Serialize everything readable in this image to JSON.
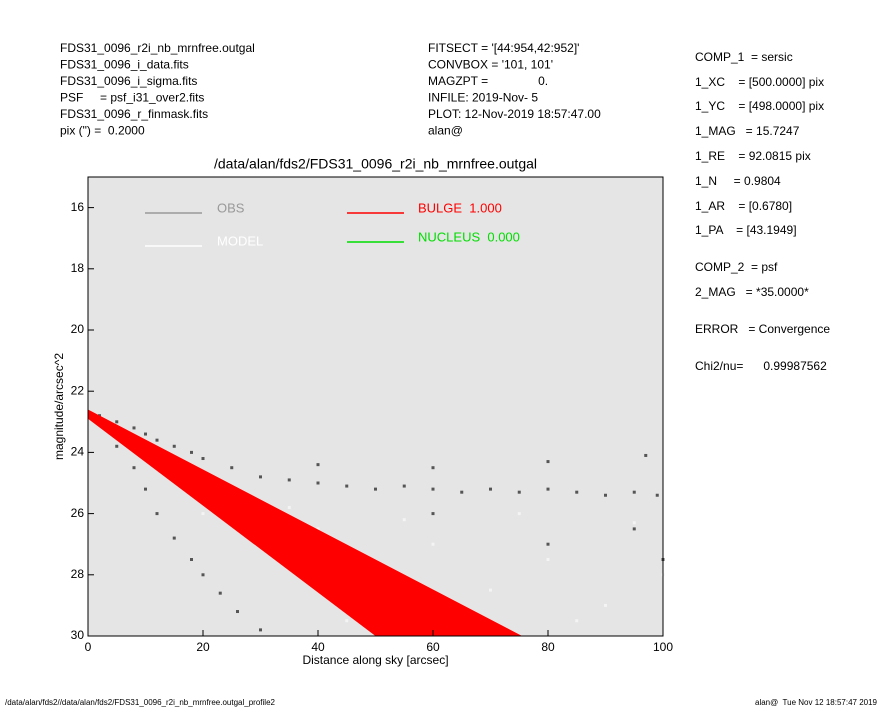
{
  "header": {
    "left": [
      "FDS31_0096_r2i_nb_mrnfree.outgal",
      "FDS31_0096_i_data.fits",
      "FDS31_0096_i_sigma.fits",
      "PSF     = psf_i31_over2.fits",
      "FDS31_0096_r_finmask.fits",
      "pix (\") =  0.2000"
    ],
    "middle": [
      "FITSECT = '[44:954,42:952]'",
      "CONVBOX = '101, 101'",
      "MAGZPT =               0.",
      "INFILE: 2019-Nov- 5",
      "PLOT: 12-Nov-2019 18:57:47.00",
      "alan@"
    ]
  },
  "side_panel": [
    "COMP_1  = sersic",
    "1_XC    = [500.0000] pix",
    "1_YC    = [498.0000] pix",
    "1_MAG   = 15.7247",
    "1_RE    = 92.0815 pix",
    "1_N     = 0.9804",
    "1_AR    = [0.6780]",
    "1_PA    = [43.1949]",
    "COMP_2  = psf",
    "2_MAG   = *35.0000*",
    "ERROR   = Convergence",
    "Chi2/nu=      0.99987562"
  ],
  "footer": {
    "left": "/data/alan/fds2//data/alan/fds2/FDS31_0096_r2i_nb_mrnfree.outgal_profile2",
    "right": "alan@  Tue Nov 12 18:57:47 2019"
  },
  "chart_data": {
    "type": "scatter",
    "title": "/data/alan/fds2/FDS31_0096_r2i_nb_mrnfree.outgal",
    "x_label": "Distance along sky [arcsec]",
    "y_label": "magnitude/arcsec^2",
    "xlim": [
      0,
      100
    ],
    "ylim": [
      30,
      15
    ],
    "xticks": [
      0,
      20,
      40,
      60,
      80,
      100
    ],
    "yticks": [
      16,
      18,
      20,
      22,
      24,
      26,
      28,
      30
    ],
    "background": "#e5e5e5",
    "series": [
      {
        "name": "OBS",
        "color": "#555555",
        "legend_color": "#999999",
        "x": [
          2,
          5,
          8,
          10,
          12,
          15,
          18,
          20,
          25,
          30,
          35,
          40,
          45,
          50,
          55,
          60,
          65,
          70,
          75,
          80,
          85,
          90,
          95,
          99,
          40,
          60,
          80,
          97,
          5,
          8,
          10,
          12,
          15,
          18,
          20,
          23,
          26,
          30,
          60,
          80,
          95,
          100
        ],
        "y": [
          22.8,
          23.0,
          23.2,
          23.4,
          23.6,
          23.8,
          24.0,
          24.2,
          24.5,
          24.8,
          24.9,
          25.0,
          25.1,
          25.2,
          25.1,
          25.2,
          25.3,
          25.2,
          25.3,
          25.2,
          25.3,
          25.4,
          25.3,
          25.4,
          24.4,
          24.5,
          24.3,
          24.1,
          23.8,
          24.5,
          25.2,
          26,
          26.8,
          27.5,
          28,
          28.6,
          29.2,
          29.8,
          26,
          27,
          26.5,
          27.5
        ]
      },
      {
        "name": "MODEL",
        "color": "#f4f4f4",
        "legend_color": "#ffffff",
        "x": [
          20,
          40,
          60,
          80,
          100,
          30,
          50,
          70,
          90,
          45,
          65,
          85,
          35,
          55,
          75,
          95
        ],
        "y": [
          26,
          26.5,
          27,
          27.5,
          28,
          27,
          28,
          28.5,
          29,
          29.5,
          29.8,
          29.5,
          25.8,
          26.2,
          26,
          26.3
        ]
      },
      {
        "name": "BULGE  1.000",
        "color": "#ff0000",
        "x": [
          0,
          50
        ],
        "y": [
          22.9,
          30
        ],
        "x2": [
          0,
          75.5
        ],
        "y2": [
          22.6,
          30
        ]
      },
      {
        "name": "NUCLEUS  0.000",
        "color": "#00dd00",
        "x": [],
        "y": []
      }
    ]
  }
}
